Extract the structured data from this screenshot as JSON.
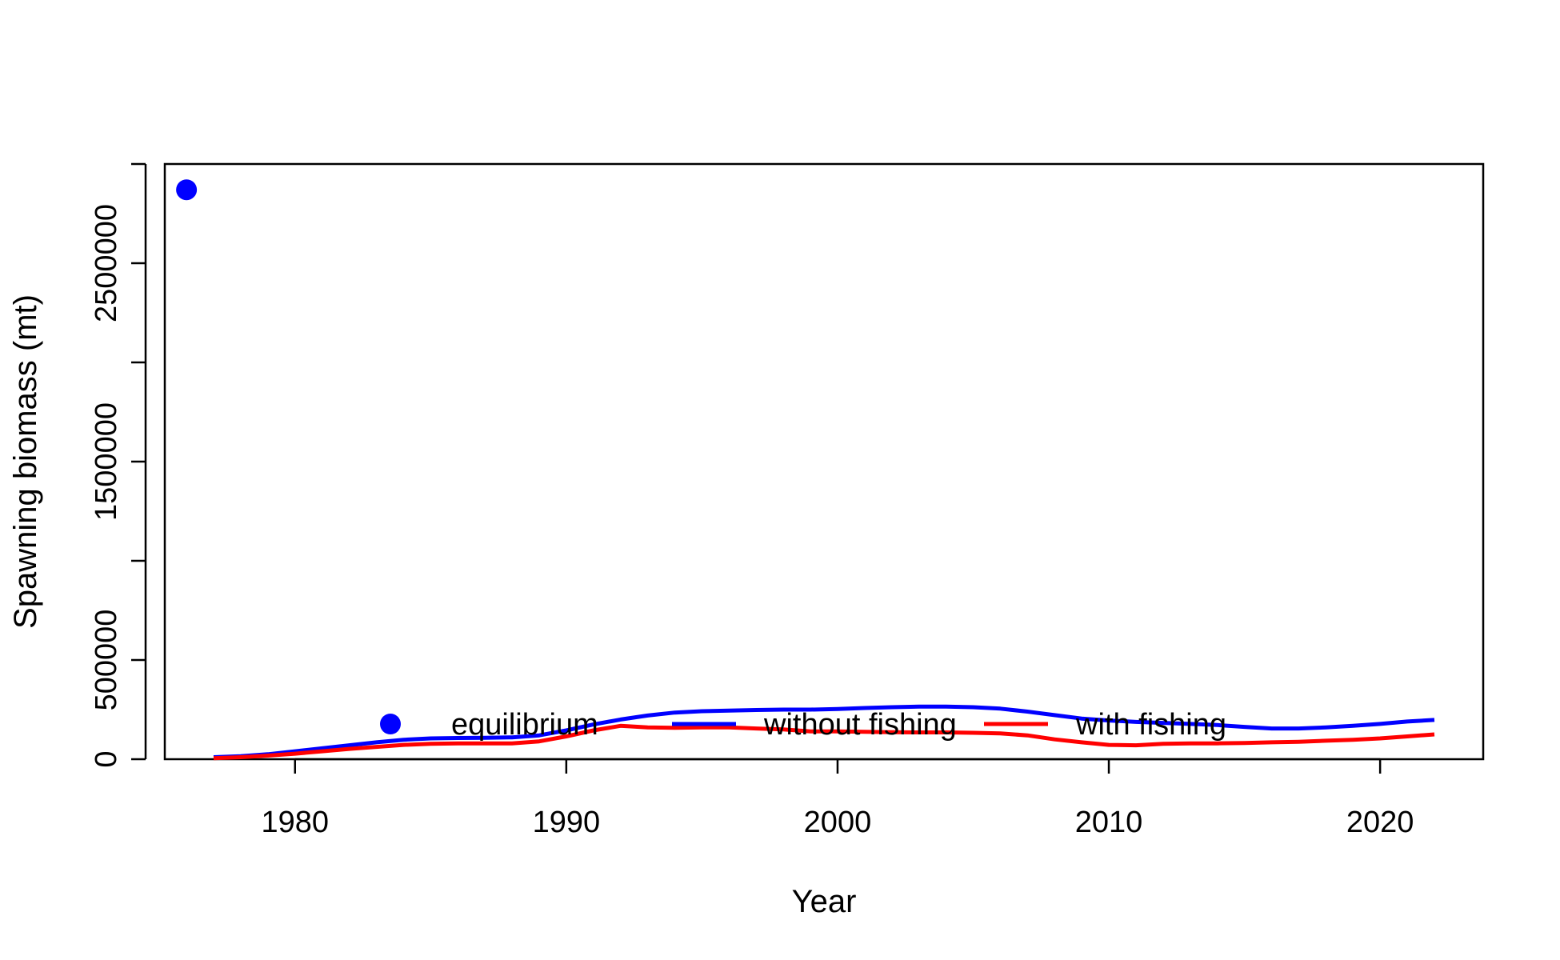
{
  "chart_data": {
    "type": "line",
    "title": "",
    "xlabel": "Year",
    "ylabel": "Spawning biomass (mt)",
    "xlim": [
      1975.2,
      2023.8
    ],
    "ylim": [
      0,
      3000000
    ],
    "x_ticks": [
      1980,
      1990,
      2000,
      2010,
      2020
    ],
    "y_ticks": [
      0,
      500000,
      1000000,
      1500000,
      2000000,
      2500000,
      3000000
    ],
    "y_tick_labels": [
      "0",
      "500000",
      "",
      "1500000",
      "",
      "2500000",
      ""
    ],
    "grid": false,
    "legend": {
      "placement": "bottom-center",
      "entries": [
        {
          "label": "equilibrium",
          "kind": "point",
          "color": "#0000ff"
        },
        {
          "label": "without fishing",
          "kind": "line",
          "color": "#0000ff"
        },
        {
          "label": "with fishing",
          "kind": "line",
          "color": "#ff0000"
        }
      ]
    },
    "points": [
      {
        "name": "equilibrium",
        "x": 1976,
        "y": 2870000,
        "color": "#0000ff"
      }
    ],
    "series": [
      {
        "name": "without fishing",
        "color": "#0000ff",
        "x": [
          1977,
          1978,
          1979,
          1980,
          1981,
          1982,
          1983,
          1984,
          1985,
          1986,
          1987,
          1988,
          1989,
          1990,
          1991,
          1992,
          1993,
          1994,
          1995,
          1996,
          1997,
          1998,
          1999,
          2000,
          2001,
          2002,
          2003,
          2004,
          2005,
          2006,
          2007,
          2008,
          2009,
          2010,
          2011,
          2012,
          2013,
          2014,
          2015,
          2016,
          2017,
          2018,
          2019,
          2020,
          2021,
          2022
        ],
        "values": [
          10000,
          15000,
          25000,
          40000,
          55000,
          70000,
          85000,
          98000,
          105000,
          107000,
          108000,
          110000,
          120000,
          145000,
          175000,
          200000,
          220000,
          235000,
          242000,
          245000,
          248000,
          250000,
          250000,
          253000,
          258000,
          262000,
          265000,
          265000,
          262000,
          255000,
          240000,
          222000,
          205000,
          195000,
          188000,
          183000,
          178000,
          172000,
          163000,
          155000,
          155000,
          160000,
          168000,
          178000,
          190000,
          198000
        ]
      },
      {
        "name": "with fishing",
        "color": "#ff0000",
        "x": [
          1977,
          1978,
          1979,
          1980,
          1981,
          1982,
          1983,
          1984,
          1985,
          1986,
          1987,
          1988,
          1989,
          1990,
          1991,
          1992,
          1993,
          1994,
          1995,
          1996,
          1997,
          1998,
          1999,
          2000,
          2001,
          2002,
          2003,
          2004,
          2005,
          2006,
          2007,
          2008,
          2009,
          2010,
          2011,
          2012,
          2013,
          2014,
          2015,
          2016,
          2017,
          2018,
          2019,
          2020,
          2021,
          2022
        ],
        "values": [
          5000,
          10000,
          18000,
          28000,
          40000,
          52000,
          62000,
          72000,
          78000,
          80000,
          80000,
          80000,
          90000,
          115000,
          145000,
          168000,
          160000,
          158000,
          160000,
          160000,
          155000,
          150000,
          140000,
          140000,
          138000,
          136000,
          135000,
          135000,
          133000,
          130000,
          120000,
          100000,
          85000,
          72000,
          70000,
          78000,
          80000,
          80000,
          82000,
          85000,
          88000,
          93000,
          98000,
          105000,
          115000,
          125000
        ]
      }
    ]
  }
}
